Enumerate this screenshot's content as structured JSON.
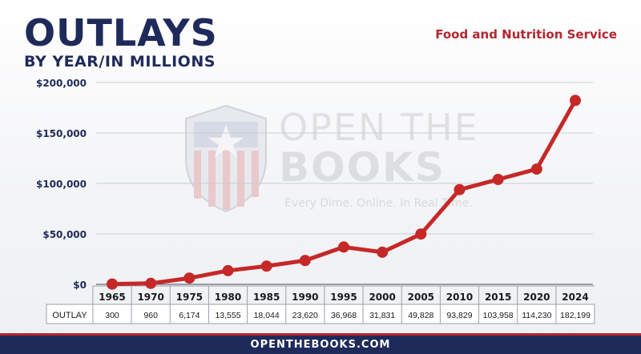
{
  "header": {
    "title": "OUTLAYS",
    "subtitle": "BY YEAR/IN MILLIONS",
    "agency": "Food and Nutrition Service"
  },
  "watermark": {
    "line1": "OPEN THE",
    "line2": "BOOKS",
    "tagline": "Every Dime. Online. In Real Time."
  },
  "footer": {
    "url": "OPENTHEBOOKS.COM"
  },
  "colors": {
    "navy": "#1e2a5a",
    "red": "#b3262e",
    "line": "#c62828"
  },
  "chart_data": {
    "type": "line",
    "title": "OUTLAYS",
    "subtitle": "BY YEAR/IN MILLIONS",
    "categories": [
      "1965",
      "1970",
      "1975",
      "1980",
      "1985",
      "1990",
      "1995",
      "2000",
      "2005",
      "2010",
      "2015",
      "2020",
      "2024"
    ],
    "series": [
      {
        "values": [
          300,
          960,
          6174,
          13555,
          18044,
          23620,
          36968,
          31831,
          49828,
          93829,
          103958,
          114230,
          182199
        ]
      }
    ],
    "table_row_label": "OUTLAY",
    "table_values": [
      "300",
      "960",
      "6,174",
      "13,555",
      "18,044",
      "23,620",
      "36,968",
      "31,831",
      "49,828",
      "93,829",
      "103,958",
      "114,230",
      "182,199"
    ],
    "ylim": [
      0,
      200000
    ],
    "yticks": [
      0,
      50000,
      100000,
      150000,
      200000
    ],
    "ytick_labels": [
      "$0",
      "$50,000",
      "$100,000",
      "$150,000",
      "$200,000"
    ],
    "grid": true
  }
}
